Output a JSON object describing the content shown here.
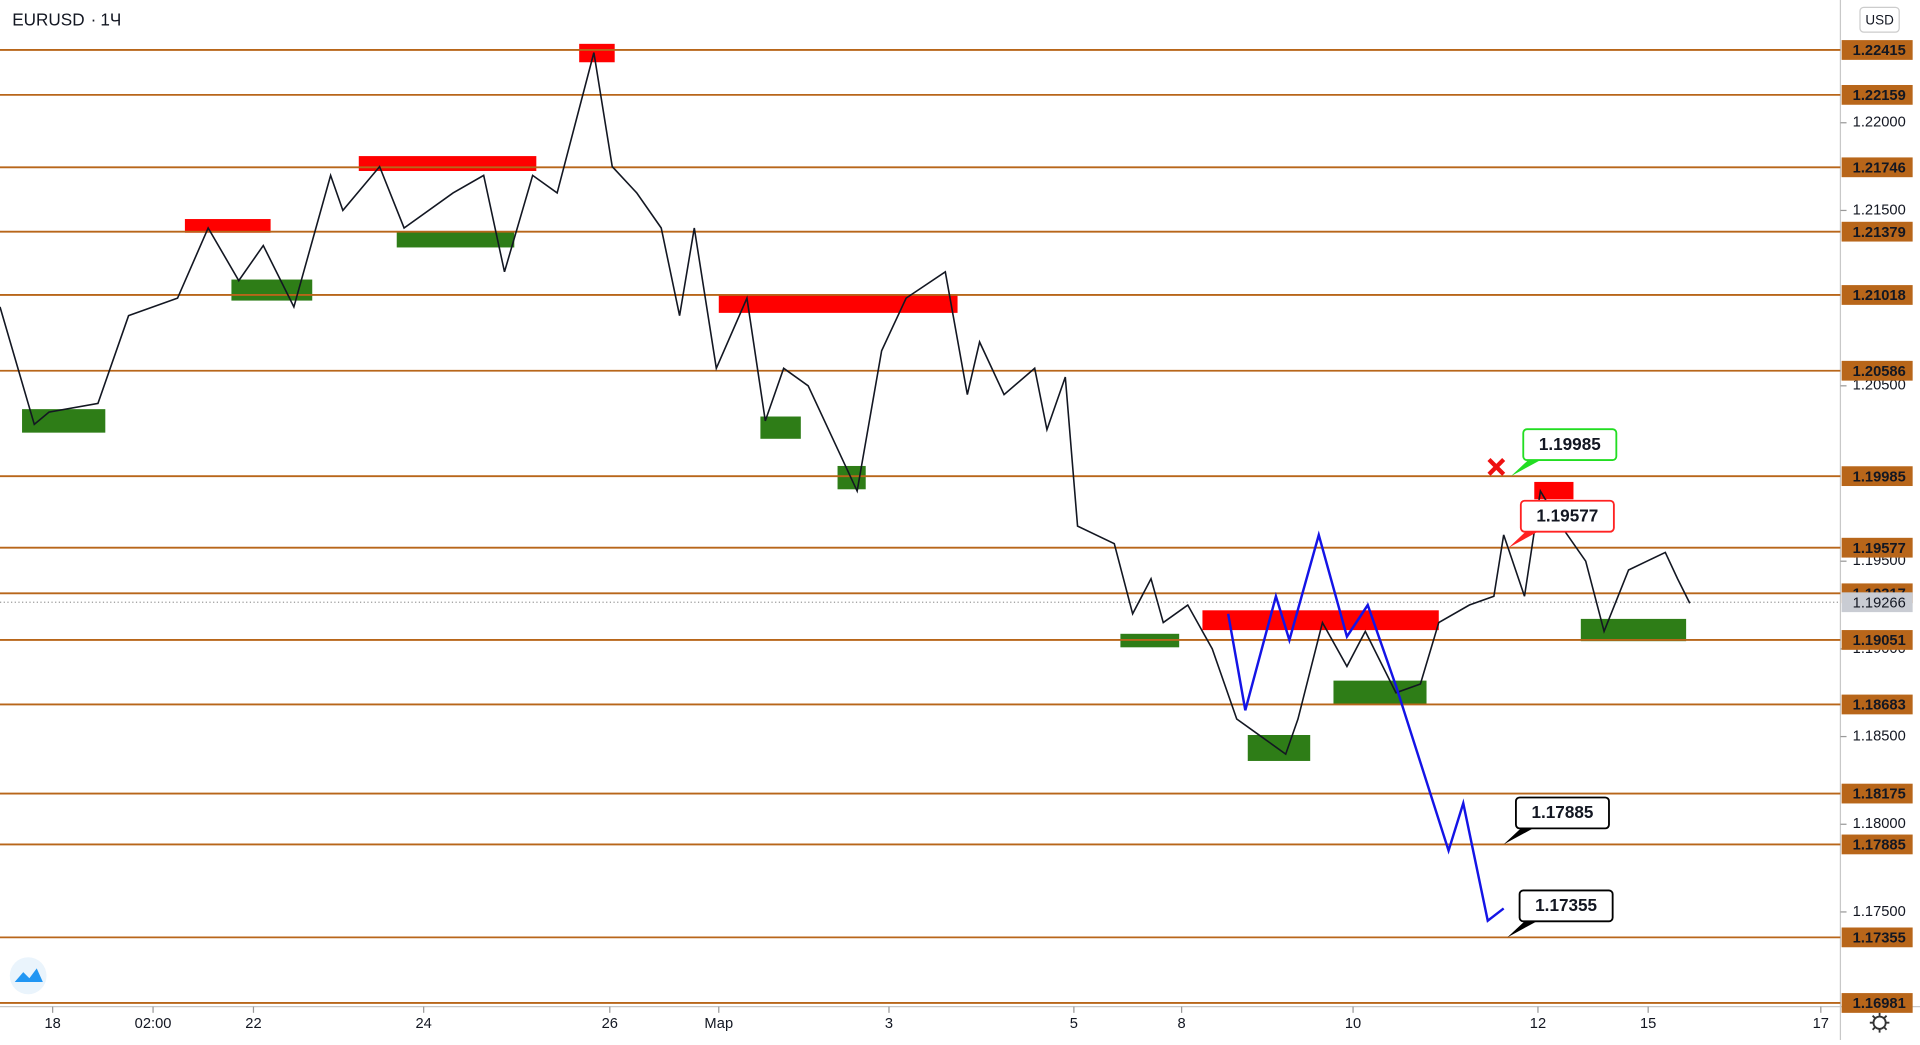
{
  "chart_data": {
    "type": "line",
    "title": "EURUSD",
    "interval": "1Ч",
    "currency": "USD",
    "color": "#131722",
    "xlim": [
      0,
      1503
    ],
    "ylim": [
      1.1696,
      1.227
    ],
    "xticks": [
      {
        "value": 43,
        "label": "18"
      },
      {
        "value": 125,
        "label": "02:00"
      },
      {
        "value": 207,
        "label": "22"
      },
      {
        "value": 346,
        "label": "24"
      },
      {
        "value": 498,
        "label": "26"
      },
      {
        "value": 587,
        "label": "Мар"
      },
      {
        "value": 726,
        "label": "3"
      },
      {
        "value": 877,
        "label": "5"
      },
      {
        "value": 965,
        "label": "8"
      },
      {
        "value": 1105,
        "label": "10"
      },
      {
        "value": 1256,
        "label": "12"
      },
      {
        "value": 1346,
        "label": "15"
      },
      {
        "value": 1487,
        "label": "17"
      }
    ],
    "yticks": [
      {
        "value": 1.22,
        "label": "1.22000"
      },
      {
        "value": 1.215,
        "label": "1.21500"
      },
      {
        "value": 1.205,
        "label": "1.20500"
      },
      {
        "value": 1.195,
        "label": "1.19500"
      },
      {
        "value": 1.19,
        "label": "1.19000"
      },
      {
        "value": 1.185,
        "label": "1.18500"
      },
      {
        "value": 1.18,
        "label": "1.18000"
      },
      {
        "value": 1.175,
        "label": "1.17500"
      }
    ],
    "x": [
      0,
      28,
      40,
      80,
      105,
      145,
      170,
      195,
      215,
      240,
      270,
      280,
      310,
      330,
      370,
      395,
      412,
      435,
      455,
      485,
      500,
      520,
      540,
      555,
      567,
      585,
      610,
      625,
      640,
      660,
      700,
      720,
      740,
      772,
      790,
      800,
      820,
      845,
      855,
      870,
      880,
      910,
      925,
      940,
      950,
      970,
      990,
      1010,
      1030,
      1050,
      1060,
      1080,
      1100,
      1115,
      1140,
      1160,
      1175,
      1200,
      1220,
      1228,
      1245,
      1258,
      1275,
      1295,
      1310,
      1330,
      1345,
      1360,
      1370,
      1380
    ],
    "values": [
      1.2095,
      1.2028,
      1.2035,
      1.204,
      1.209,
      1.21,
      1.214,
      1.211,
      1.213,
      1.2095,
      1.217,
      1.215,
      1.2175,
      1.214,
      1.216,
      1.217,
      1.2115,
      1.217,
      1.216,
      1.224,
      1.2175,
      1.216,
      1.214,
      1.209,
      1.214,
      1.206,
      1.21,
      1.203,
      1.206,
      1.205,
      1.199,
      1.207,
      1.21,
      1.2115,
      1.2045,
      1.2075,
      1.2045,
      1.206,
      1.2025,
      1.2055,
      1.197,
      1.196,
      1.192,
      1.194,
      1.1915,
      1.1925,
      1.19,
      1.186,
      1.185,
      1.184,
      1.186,
      1.1915,
      1.189,
      1.191,
      1.1875,
      1.188,
      1.1915,
      1.1925,
      1.193,
      1.1965,
      1.193,
      1.199,
      1.197,
      1.195,
      1.191,
      1.1945,
      1.195,
      1.1955,
      1.194,
      1.1926
    ],
    "levels": [
      1.22415,
      1.22159,
      1.21746,
      1.21379,
      1.21018,
      1.20586,
      1.19985,
      1.19577,
      1.19317,
      1.19051,
      1.18683,
      1.18175,
      1.17885,
      1.17355,
      1.16981
    ],
    "level_color": "#b8661a",
    "current_price": 1.19266,
    "zones": [
      {
        "color": "#ff0000",
        "x": [
          151,
          221
        ],
        "y": [
          1.21373,
          1.21451
        ]
      },
      {
        "color": "#ff0000",
        "x": [
          293,
          438
        ],
        "y": [
          1.21725,
          1.2181
        ]
      },
      {
        "color": "#ff0000",
        "x": [
          473,
          502
        ],
        "y": [
          1.22345,
          1.2245
        ]
      },
      {
        "color": "#ff0000",
        "x": [
          587,
          782
        ],
        "y": [
          1.20916,
          1.21022
        ]
      },
      {
        "color": "#ff0000",
        "x": [
          982,
          1175
        ],
        "y": [
          1.19107,
          1.1922
        ]
      },
      {
        "color": "#ff0000",
        "x": [
          1253,
          1285
        ],
        "y": [
          1.19853,
          1.19952
        ]
      },
      {
        "color": "#2e7d17",
        "x": [
          18,
          86
        ],
        "y": [
          1.20233,
          1.20367
        ]
      },
      {
        "color": "#2e7d17",
        "x": [
          189,
          255
        ],
        "y": [
          1.20986,
          1.21106
        ]
      },
      {
        "color": "#2e7d17",
        "x": [
          324,
          420
        ],
        "y": [
          1.21289,
          1.2138
        ]
      },
      {
        "color": "#2e7d17",
        "x": [
          621,
          654
        ],
        "y": [
          1.20198,
          1.20325
        ]
      },
      {
        "color": "#2e7d17",
        "x": [
          684,
          707
        ],
        "y": [
          1.1991,
          1.20043
        ]
      },
      {
        "color": "#2e7d17",
        "x": [
          915,
          963
        ],
        "y": [
          1.19009,
          1.19086
        ]
      },
      {
        "color": "#2e7d17",
        "x": [
          1019,
          1070
        ],
        "y": [
          1.18361,
          1.18509
        ]
      },
      {
        "color": "#2e7d17",
        "x": [
          1089,
          1165
        ],
        "y": [
          1.18685,
          1.18819
        ]
      },
      {
        "color": "#2e7d17",
        "x": [
          1291,
          1377
        ],
        "y": [
          1.19044,
          1.19171
        ]
      }
    ],
    "projection": {
      "color": "#1414e6",
      "x": [
        1003,
        1017,
        1042,
        1053,
        1077,
        1100,
        1117,
        1140,
        1183,
        1195,
        1215,
        1228
      ],
      "values": [
        1.192,
        1.1865,
        1.193,
        1.1905,
        1.1965,
        1.1907,
        1.1925,
        1.1879,
        1.1785,
        1.1812,
        1.1745,
        1.1752
      ]
    },
    "annotations": [
      {
        "value": 1.19985,
        "x": 1234,
        "color": "#22dd22"
      },
      {
        "value": 1.19577,
        "x": 1232,
        "color": "#ff2222"
      },
      {
        "value": 1.17885,
        "x": 1228,
        "color": "#000000"
      },
      {
        "value": 1.17355,
        "x": 1231,
        "color": "#000000"
      }
    ]
  }
}
